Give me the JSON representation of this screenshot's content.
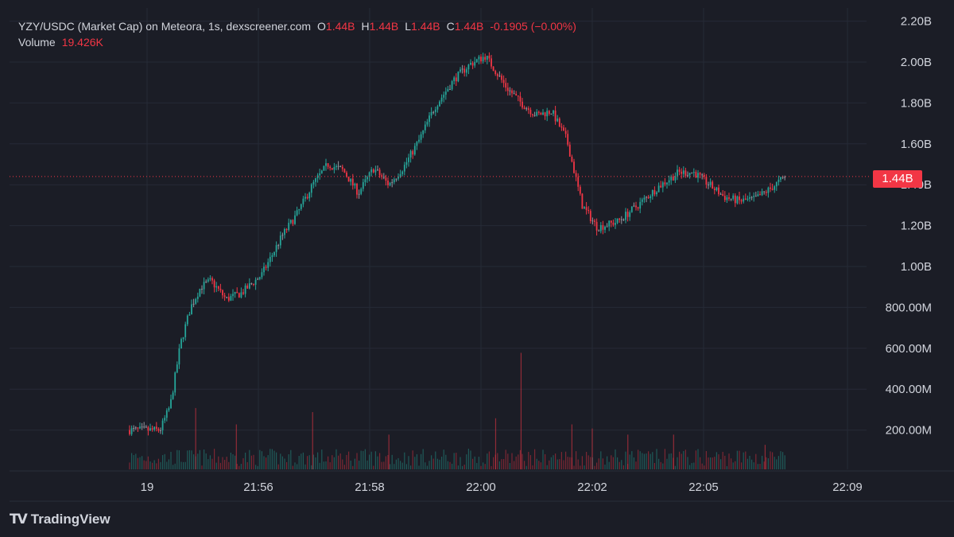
{
  "legend": {
    "symbol": "YZY/USDC (Market Cap) on Meteora, 1s, dexscreener.com",
    "o_label": "O",
    "o_value": "1.44B",
    "h_label": "H",
    "h_value": "1.44B",
    "l_label": "L",
    "l_value": "1.44B",
    "c_label": "C",
    "c_value": "1.44B",
    "change": "-0.1905 (−0.00%)",
    "volume_label": "Volume",
    "volume_value": "19.426K"
  },
  "price_tag": "1.44B",
  "footer": {
    "brand": "TradingView",
    "logo_icon": "tradingview-logo-icon"
  },
  "colors": {
    "background": "#1b1d26",
    "up": "#26a69a",
    "down": "#f23645",
    "neutral": "#9598a1",
    "grid": "#262a36",
    "text": "#d1d4dc"
  },
  "chart_data": {
    "type": "candlestick",
    "title": "",
    "xlabel": "",
    "ylabel": "",
    "ylim": [
      0,
      2200000000
    ],
    "y_ticks": [
      {
        "value": 200000000,
        "label": "200.00M"
      },
      {
        "value": 400000000,
        "label": "400.00M"
      },
      {
        "value": 600000000,
        "label": "600.00M"
      },
      {
        "value": 800000000,
        "label": "800.00M"
      },
      {
        "value": 1000000000,
        "label": "1.00B"
      },
      {
        "value": 1200000000,
        "label": "1.20B"
      },
      {
        "value": 1400000000,
        "label": "1.40B"
      },
      {
        "value": 1600000000,
        "label": "1.60B"
      },
      {
        "value": 1800000000,
        "label": "1.80B"
      },
      {
        "value": 2000000000,
        "label": "2.00B"
      },
      {
        "value": 2200000000,
        "label": "2.20B"
      }
    ],
    "x_ticks": [
      "19",
      "21:56",
      "21:58",
      "22:00",
      "22:02",
      "22:05",
      "22:09"
    ],
    "last_price": 1440000000,
    "price_path": [
      [
        "21:54:10",
        200000000
      ],
      [
        "21:54:40",
        200000000
      ],
      [
        "21:54:50",
        320000000
      ],
      [
        "21:55:00",
        620000000
      ],
      [
        "21:55:10",
        800000000
      ],
      [
        "21:55:20",
        900000000
      ],
      [
        "21:55:30",
        930000000
      ],
      [
        "21:55:45",
        840000000
      ],
      [
        "21:56:00",
        870000000
      ],
      [
        "21:56:20",
        960000000
      ],
      [
        "21:56:40",
        1150000000
      ],
      [
        "21:56:55",
        1260000000
      ],
      [
        "21:57:10",
        1400000000
      ],
      [
        "21:57:25",
        1500000000
      ],
      [
        "21:57:40",
        1470000000
      ],
      [
        "21:57:55",
        1360000000
      ],
      [
        "21:58:10",
        1480000000
      ],
      [
        "21:58:25",
        1400000000
      ],
      [
        "21:58:40",
        1490000000
      ],
      [
        "21:58:55",
        1620000000
      ],
      [
        "21:59:10",
        1780000000
      ],
      [
        "21:59:30",
        1920000000
      ],
      [
        "21:59:45",
        1990000000
      ],
      [
        "22:00:00",
        2030000000
      ],
      [
        "22:00:20",
        1880000000
      ],
      [
        "22:00:35",
        1800000000
      ],
      [
        "22:00:50",
        1740000000
      ],
      [
        "22:01:05",
        1760000000
      ],
      [
        "22:01:20",
        1620000000
      ],
      [
        "22:01:35",
        1300000000
      ],
      [
        "22:01:50",
        1190000000
      ],
      [
        "22:02:10",
        1220000000
      ],
      [
        "22:02:30",
        1300000000
      ],
      [
        "22:02:50",
        1390000000
      ],
      [
        "22:03:10",
        1460000000
      ],
      [
        "22:03:25",
        1460000000
      ],
      [
        "22:03:40",
        1400000000
      ],
      [
        "22:03:55",
        1340000000
      ],
      [
        "22:04:10",
        1320000000
      ],
      [
        "22:04:25",
        1330000000
      ],
      [
        "22:04:40",
        1380000000
      ],
      [
        "22:04:55",
        1440000000
      ]
    ],
    "volume_spikes": [
      [
        "21:55:15",
        300000000
      ],
      [
        "21:55:55",
        220000000
      ],
      [
        "21:57:10",
        280000000
      ],
      [
        "21:58:25",
        170000000
      ],
      [
        "22:00:10",
        250000000
      ],
      [
        "22:00:35",
        570000000
      ],
      [
        "22:01:25",
        220000000
      ],
      [
        "22:01:45",
        200000000
      ],
      [
        "22:02:20",
        170000000
      ],
      [
        "22:03:05",
        170000000
      ],
      [
        "22:04:35",
        120000000
      ]
    ]
  }
}
